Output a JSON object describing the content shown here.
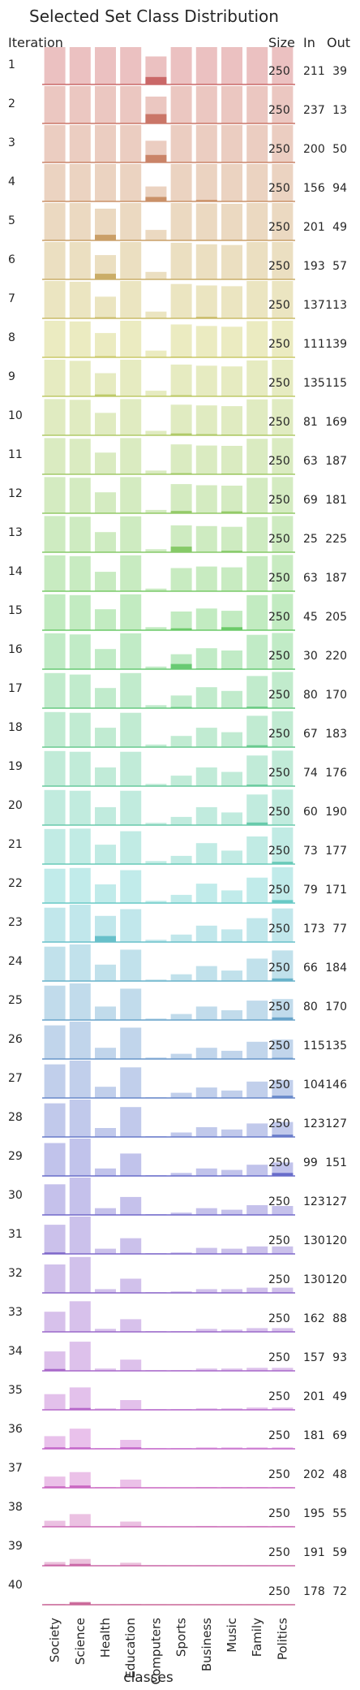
{
  "chart_data": {
    "type": "bar",
    "title": "Selected Set Class Distribution",
    "xlabel": "classes",
    "ylabel": "Iteration",
    "categories": [
      "Society",
      "Science",
      "Health",
      "Education",
      "Computers",
      "Sports",
      "Business",
      "Music",
      "Family",
      "Politics"
    ],
    "columns": {
      "iteration": "Iteration",
      "size": "Size",
      "in": "In",
      "out": "Out"
    },
    "grid": false,
    "legend": "none",
    "note": "",
    "rows": [
      {
        "iteration": 1,
        "size": 250,
        "in": 211,
        "out": 39,
        "pool": [
          1.0,
          1.0,
          1.0,
          1.0,
          0.75,
          1.0,
          1.0,
          1.0,
          1.0,
          1.0
        ],
        "selected": [
          0,
          0,
          0,
          0,
          0.2,
          0,
          0,
          0,
          0,
          0
        ]
      },
      {
        "iteration": 2,
        "size": 250,
        "in": 237,
        "out": 13,
        "pool": [
          1.0,
          1.0,
          1.0,
          1.0,
          0.72,
          1.0,
          1.0,
          1.0,
          1.0,
          1.0
        ],
        "selected": [
          0,
          0,
          0,
          0,
          0.25,
          0,
          0,
          0,
          0,
          0
        ]
      },
      {
        "iteration": 3,
        "size": 250,
        "in": 200,
        "out": 50,
        "pool": [
          1.0,
          1.0,
          1.0,
          1.0,
          0.58,
          1.0,
          1.0,
          1.0,
          1.0,
          1.0
        ],
        "selected": [
          0,
          0,
          0,
          0,
          0.2,
          0,
          0,
          0,
          0,
          0
        ]
      },
      {
        "iteration": 4,
        "size": 250,
        "in": 156,
        "out": 94,
        "pool": [
          1.0,
          1.0,
          1.0,
          1.0,
          0.4,
          1.0,
          1.0,
          1.0,
          1.0,
          1.0
        ],
        "selected": [
          0,
          0,
          0,
          0,
          0.12,
          0,
          0.04,
          0,
          0,
          0
        ]
      },
      {
        "iteration": 5,
        "size": 250,
        "in": 201,
        "out": 49,
        "pool": [
          1.0,
          1.0,
          0.85,
          1.0,
          0.28,
          1.0,
          0.99,
          0.98,
          1.0,
          1.0
        ],
        "selected": [
          0,
          0,
          0.15,
          0,
          0,
          0,
          0,
          0,
          0,
          0
        ]
      },
      {
        "iteration": 6,
        "size": 250,
        "in": 193,
        "out": 57,
        "pool": [
          1.0,
          1.0,
          0.65,
          1.0,
          0.2,
          0.98,
          0.94,
          0.92,
          1.0,
          1.0
        ],
        "selected": [
          0,
          0,
          0.15,
          0,
          0,
          0,
          0,
          0,
          0,
          0
        ]
      },
      {
        "iteration": 7,
        "size": 250,
        "in": 137,
        "out": 113,
        "pool": [
          1.0,
          0.98,
          0.58,
          1.0,
          0.18,
          0.92,
          0.88,
          0.86,
          1.0,
          1.0
        ],
        "selected": [
          0,
          0,
          0.03,
          0,
          0,
          0,
          0.04,
          0,
          0,
          0
        ]
      },
      {
        "iteration": 8,
        "size": 250,
        "in": 111,
        "out": 139,
        "pool": [
          0.98,
          0.96,
          0.65,
          0.98,
          0.18,
          0.88,
          0.84,
          0.82,
          0.97,
          0.98
        ],
        "selected": [
          0,
          0,
          0.03,
          0,
          0,
          0.02,
          0,
          0,
          0,
          0
        ]
      },
      {
        "iteration": 9,
        "size": 250,
        "in": 135,
        "out": 115,
        "pool": [
          0.98,
          0.95,
          0.62,
          0.98,
          0.15,
          0.85,
          0.82,
          0.8,
          0.96,
          0.98
        ],
        "selected": [
          0,
          0,
          0.05,
          0,
          0,
          0.03,
          0,
          0,
          0,
          0
        ]
      },
      {
        "iteration": 10,
        "size": 250,
        "in": 81,
        "out": 169,
        "pool": [
          0.97,
          0.95,
          0.6,
          0.97,
          0.12,
          0.82,
          0.8,
          0.78,
          0.96,
          0.97
        ],
        "selected": [
          0,
          0,
          0,
          0,
          0,
          0.05,
          0.03,
          0.02,
          0,
          0
        ]
      },
      {
        "iteration": 11,
        "size": 250,
        "in": 63,
        "out": 187,
        "pool": [
          0.97,
          0.95,
          0.58,
          0.97,
          0.1,
          0.8,
          0.77,
          0.76,
          0.95,
          0.97
        ],
        "selected": [
          0,
          0,
          0,
          0,
          0,
          0.03,
          0,
          0.02,
          0,
          0
        ]
      },
      {
        "iteration": 12,
        "size": 250,
        "in": 69,
        "out": 181,
        "pool": [
          0.97,
          0.95,
          0.56,
          0.97,
          0.09,
          0.78,
          0.75,
          0.74,
          0.95,
          0.97
        ],
        "selected": [
          0,
          0,
          0,
          0,
          0,
          0.06,
          0,
          0.05,
          0,
          0
        ]
      },
      {
        "iteration": 13,
        "size": 250,
        "in": 25,
        "out": 225,
        "pool": [
          0.97,
          0.95,
          0.54,
          0.96,
          0.08,
          0.72,
          0.7,
          0.68,
          0.94,
          0.97
        ],
        "selected": [
          0,
          0,
          0,
          0,
          0,
          0.15,
          0,
          0.04,
          0,
          0
        ]
      },
      {
        "iteration": 14,
        "size": 250,
        "in": 63,
        "out": 187,
        "pool": [
          0.96,
          0.94,
          0.52,
          0.96,
          0.07,
          0.62,
          0.66,
          0.64,
          0.94,
          0.97
        ],
        "selected": [
          0,
          0,
          0,
          0,
          0,
          0,
          0,
          0,
          0,
          0
        ]
      },
      {
        "iteration": 15,
        "size": 250,
        "in": 45,
        "out": 205,
        "pool": [
          0.96,
          0.94,
          0.56,
          0.96,
          0.08,
          0.5,
          0.58,
          0.52,
          0.94,
          0.97
        ],
        "selected": [
          0,
          0,
          0,
          0,
          0,
          0.05,
          0,
          0.08,
          0,
          0
        ]
      },
      {
        "iteration": 16,
        "size": 250,
        "in": 30,
        "out": 220,
        "pool": [
          0.96,
          0.93,
          0.54,
          0.96,
          0.07,
          0.4,
          0.56,
          0.5,
          0.92,
          0.97
        ],
        "selected": [
          0,
          0,
          0,
          0,
          0,
          0.14,
          0.02,
          0.02,
          0,
          0
        ]
      },
      {
        "iteration": 17,
        "size": 250,
        "in": 80,
        "out": 170,
        "pool": [
          0.94,
          0.9,
          0.54,
          0.94,
          0.08,
          0.34,
          0.56,
          0.46,
          0.86,
          0.97
        ],
        "selected": [
          0,
          0,
          0,
          0,
          0,
          0.03,
          0,
          0,
          0.04,
          0
        ]
      },
      {
        "iteration": 18,
        "size": 250,
        "in": 67,
        "out": 183,
        "pool": [
          0.94,
          0.92,
          0.52,
          0.92,
          0.07,
          0.3,
          0.52,
          0.4,
          0.84,
          0.96
        ],
        "selected": [
          0,
          0,
          0,
          0,
          0,
          0,
          0,
          0,
          0.05,
          0
        ]
      },
      {
        "iteration": 19,
        "size": 250,
        "in": 74,
        "out": 176,
        "pool": [
          0.94,
          0.92,
          0.5,
          0.92,
          0.06,
          0.28,
          0.5,
          0.38,
          0.82,
          0.95
        ],
        "selected": [
          0,
          0,
          0,
          0,
          0,
          0,
          0,
          0,
          0.04,
          0
        ]
      },
      {
        "iteration": 20,
        "size": 250,
        "in": 60,
        "out": 190,
        "pool": [
          0.94,
          0.92,
          0.48,
          0.92,
          0.06,
          0.22,
          0.48,
          0.34,
          0.82,
          0.95
        ],
        "selected": [
          0,
          0,
          0,
          0,
          0,
          0,
          0,
          0,
          0.07,
          0
        ]
      },
      {
        "iteration": 21,
        "size": 250,
        "in": 73,
        "out": 177,
        "pool": [
          0.94,
          0.95,
          0.52,
          0.88,
          0.08,
          0.22,
          0.56,
          0.36,
          0.74,
          0.98
        ],
        "selected": [
          0,
          0,
          0,
          0,
          0,
          0,
          0,
          0,
          0,
          0.06
        ]
      },
      {
        "iteration": 22,
        "size": 250,
        "in": 79,
        "out": 171,
        "pool": [
          0.92,
          0.94,
          0.5,
          0.88,
          0.06,
          0.22,
          0.52,
          0.34,
          0.68,
          0.96
        ],
        "selected": [
          0,
          0,
          0,
          0,
          0,
          0,
          0,
          0,
          0,
          0.08
        ]
      },
      {
        "iteration": 23,
        "size": 250,
        "in": 173,
        "out": 77,
        "pool": [
          0.92,
          1.0,
          0.7,
          0.88,
          0.06,
          0.2,
          0.44,
          0.34,
          0.64,
          0.9
        ],
        "selected": [
          0,
          0,
          0.16,
          0,
          0,
          0,
          0,
          0,
          0,
          0
        ]
      },
      {
        "iteration": 24,
        "size": 250,
        "in": 66,
        "out": 184,
        "pool": [
          0.92,
          0.98,
          0.44,
          0.84,
          0.04,
          0.18,
          0.4,
          0.28,
          0.6,
          0.82
        ],
        "selected": [
          0,
          0,
          0,
          0,
          0,
          0,
          0,
          0,
          0,
          0.07
        ]
      },
      {
        "iteration": 25,
        "size": 250,
        "in": 80,
        "out": 170,
        "pool": [
          0.92,
          0.98,
          0.36,
          0.84,
          0.04,
          0.16,
          0.36,
          0.26,
          0.52,
          0.56
        ],
        "selected": [
          0,
          0,
          0,
          0,
          0,
          0,
          0,
          0,
          0,
          0.07
        ]
      },
      {
        "iteration": 26,
        "size": 250,
        "in": 115,
        "out": 135,
        "pool": [
          0.9,
          1.0,
          0.3,
          0.84,
          0.04,
          0.14,
          0.3,
          0.22,
          0.46,
          0.52
        ],
        "selected": [
          0,
          0,
          0,
          0,
          0,
          0,
          0,
          0,
          0,
          0.03
        ]
      },
      {
        "iteration": 27,
        "size": 250,
        "in": 104,
        "out": 146,
        "pool": [
          0.9,
          1.0,
          0.3,
          0.82,
          0.02,
          0.14,
          0.28,
          0.2,
          0.44,
          0.48
        ],
        "selected": [
          0,
          0,
          0,
          0,
          0,
          0,
          0,
          0,
          0,
          0.06
        ]
      },
      {
        "iteration": 28,
        "size": 250,
        "in": 123,
        "out": 127,
        "pool": [
          0.9,
          1.0,
          0.24,
          0.8,
          0.02,
          0.12,
          0.26,
          0.2,
          0.36,
          0.4
        ],
        "selected": [
          0,
          0,
          0,
          0,
          0,
          0,
          0,
          0,
          0,
          0.06
        ]
      },
      {
        "iteration": 29,
        "size": 250,
        "in": 99,
        "out": 151,
        "pool": [
          0.88,
          1.0,
          0.2,
          0.6,
          0.02,
          0.08,
          0.2,
          0.16,
          0.3,
          0.36
        ],
        "selected": [
          0,
          0,
          0,
          0,
          0,
          0,
          0,
          0,
          0,
          0.08
        ]
      },
      {
        "iteration": 30,
        "size": 250,
        "in": 123,
        "out": 127,
        "pool": [
          0.82,
          1.0,
          0.18,
          0.48,
          0.02,
          0.06,
          0.18,
          0.14,
          0.26,
          0.24
        ],
        "selected": [
          0,
          0,
          0,
          0,
          0,
          0,
          0,
          0,
          0,
          0
        ]
      },
      {
        "iteration": 31,
        "size": 250,
        "in": 130,
        "out": 120,
        "pool": [
          0.78,
          1.0,
          0.14,
          0.42,
          0.02,
          0.04,
          0.16,
          0.14,
          0.2,
          0.2
        ],
        "selected": [
          0.04,
          0,
          0,
          0,
          0,
          0,
          0,
          0,
          0,
          0
        ]
      },
      {
        "iteration": 32,
        "size": 250,
        "in": 130,
        "out": 120,
        "pool": [
          0.76,
          0.96,
          0.1,
          0.38,
          0.02,
          0.04,
          0.1,
          0.1,
          0.14,
          0.14
        ],
        "selected": [
          0,
          0,
          0,
          0,
          0,
          0,
          0,
          0,
          0,
          0
        ]
      },
      {
        "iteration": 33,
        "size": 250,
        "in": 162,
        "out": 88,
        "pool": [
          0.54,
          0.82,
          0.08,
          0.34,
          0.02,
          0.02,
          0.08,
          0.06,
          0.1,
          0.1
        ],
        "selected": [
          0,
          0,
          0,
          0,
          0,
          0,
          0,
          0,
          0,
          0
        ]
      },
      {
        "iteration": 34,
        "size": 250,
        "in": 157,
        "out": 93,
        "pool": [
          0.52,
          0.78,
          0.06,
          0.3,
          0.02,
          0.02,
          0.06,
          0.06,
          0.08,
          0.08
        ],
        "selected": [
          0.05,
          0,
          0,
          0,
          0,
          0,
          0,
          0,
          0,
          0
        ]
      },
      {
        "iteration": 35,
        "size": 250,
        "in": 201,
        "out": 49,
        "pool": [
          0.42,
          0.6,
          0.04,
          0.26,
          0.02,
          0.02,
          0.04,
          0.04,
          0.06,
          0.06
        ],
        "selected": [
          0,
          0.05,
          0,
          0,
          0,
          0,
          0,
          0,
          0,
          0
        ]
      },
      {
        "iteration": 36,
        "size": 250,
        "in": 181,
        "out": 69,
        "pool": [
          0.34,
          0.54,
          0.02,
          0.24,
          0.02,
          0.02,
          0.04,
          0.04,
          0.04,
          0.04
        ],
        "selected": [
          0.04,
          0.04,
          0,
          0.04,
          0,
          0,
          0,
          0,
          0,
          0
        ]
      },
      {
        "iteration": 37,
        "size": 250,
        "in": 202,
        "out": 48,
        "pool": [
          0.3,
          0.42,
          0.02,
          0.22,
          0.01,
          0.01,
          0.02,
          0.02,
          0.02,
          0.02
        ],
        "selected": [
          0.04,
          0.06,
          0,
          0,
          0,
          0,
          0,
          0,
          0,
          0
        ]
      },
      {
        "iteration": 38,
        "size": 250,
        "in": 195,
        "out": 55,
        "pool": [
          0.16,
          0.34,
          0.01,
          0.14,
          0.01,
          0.01,
          0.02,
          0.01,
          0.02,
          0.02
        ],
        "selected": [
          0,
          0,
          0,
          0,
          0,
          0,
          0,
          0,
          0,
          0
        ]
      },
      {
        "iteration": 39,
        "size": 250,
        "in": 191,
        "out": 59,
        "pool": [
          0.1,
          0.18,
          0.01,
          0.08,
          0.01,
          0.01,
          0.01,
          0.01,
          0.01,
          0.01
        ],
        "selected": [
          0.03,
          0.05,
          0,
          0,
          0,
          0,
          0,
          0,
          0,
          0
        ]
      },
      {
        "iteration": 40,
        "size": 250,
        "in": 178,
        "out": 72,
        "pool": [
          0.02,
          0.08,
          0.01,
          0.02,
          0.01,
          0.01,
          0.01,
          0.01,
          0.01,
          0.01
        ],
        "selected": [
          0,
          0.06,
          0,
          0,
          0,
          0,
          0,
          0,
          0,
          0
        ]
      }
    ]
  }
}
